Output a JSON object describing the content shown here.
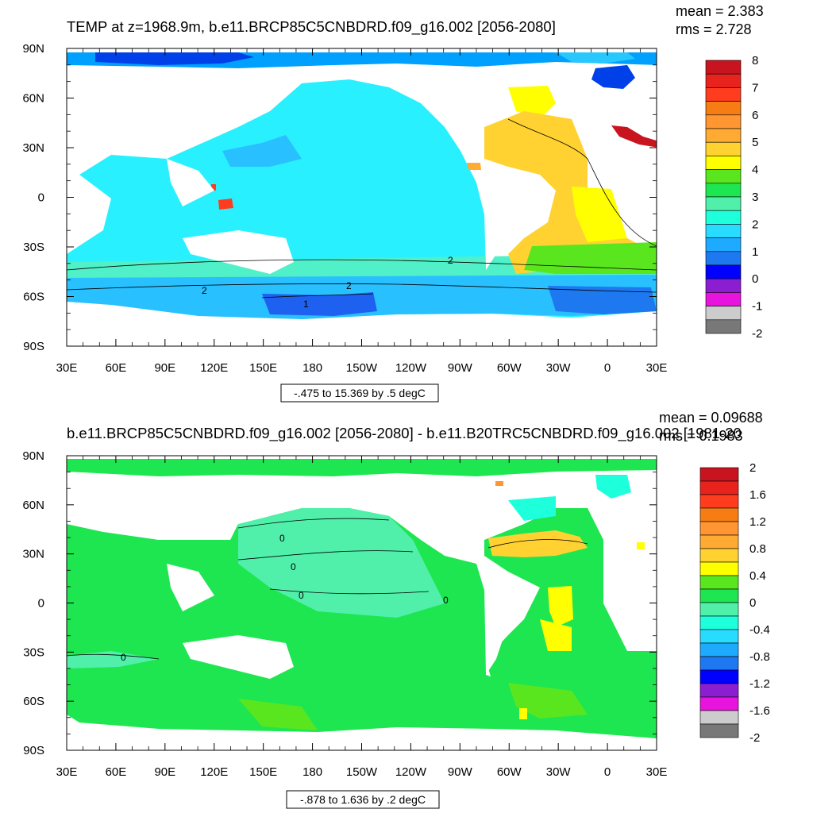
{
  "chart_data": [
    {
      "type": "heatmap",
      "title": "TEMP at z=1968.9m, b.e11.BRCP85C5CNBDRD.f09_g16.002 [2056-2080]",
      "mean_label": "mean = 2.383",
      "rms_label": "rms = 2.728",
      "contour_label": "-.475 to 15.369 by .5 degC",
      "x_ticks": [
        "30E",
        "60E",
        "90E",
        "120E",
        "150E",
        "180",
        "150W",
        "120W",
        "90W",
        "60W",
        "30W",
        "0",
        "30E"
      ],
      "y_ticks": [
        "90N",
        "60N",
        "30N",
        "0",
        "30S",
        "60S",
        "90S"
      ],
      "colorbar_levels": [
        "8",
        "7",
        "6",
        "5",
        "4",
        "3",
        "2",
        "1",
        "0",
        "-1",
        "-2"
      ],
      "colorbar_colors": [
        "#c8141e",
        "#e8231e",
        "#ff3c1e",
        "#f57d14",
        "#ff9632",
        "#ffaa32",
        "#ffd232",
        "#ffff00",
        "#5ae61e",
        "#1ee650",
        "#50f0aa",
        "#1effdc",
        "#28dcff",
        "#1eaaff",
        "#1e78f0",
        "#0000ff",
        "#8c1ed2",
        "#e614dc",
        "#cccccc",
        "#787878"
      ],
      "contour_labels_on_map": [
        "2",
        "2",
        "2",
        "1"
      ]
    },
    {
      "type": "heatmap",
      "title": "b.e11.BRCP85C5CNBDRD.f09_g16.002 [2056-2080] - b.e11.B20TRC5CNBDRD.f09_g16.002 [1981-20",
      "mean_label": "mean = 0.09688",
      "rms_label": "rms = 0.1983",
      "contour_label": "-.878 to 1.636 by .2 degC",
      "x_ticks": [
        "30E",
        "60E",
        "90E",
        "120E",
        "150E",
        "180",
        "150W",
        "120W",
        "90W",
        "60W",
        "30W",
        "0",
        "30E"
      ],
      "y_ticks": [
        "90N",
        "60N",
        "30N",
        "0",
        "30S",
        "60S",
        "90S"
      ],
      "colorbar_levels": [
        "2",
        "1.6",
        "1.2",
        "0.8",
        "0.4",
        "0",
        "-0.4",
        "-0.8",
        "-1.2",
        "-1.6",
        "-2"
      ],
      "colorbar_colors": [
        "#c8141e",
        "#e8231e",
        "#ff3c1e",
        "#f57d14",
        "#ff9632",
        "#ffaa32",
        "#ffd232",
        "#ffff00",
        "#5ae61e",
        "#1ee650",
        "#50f0aa",
        "#1effdc",
        "#28dcff",
        "#1eaaff",
        "#1e78f0",
        "#0000ff",
        "#8c1ed2",
        "#e614dc",
        "#cccccc",
        "#787878"
      ],
      "contour_labels_on_map": [
        "0",
        "0",
        "0",
        "0",
        "0"
      ]
    }
  ]
}
